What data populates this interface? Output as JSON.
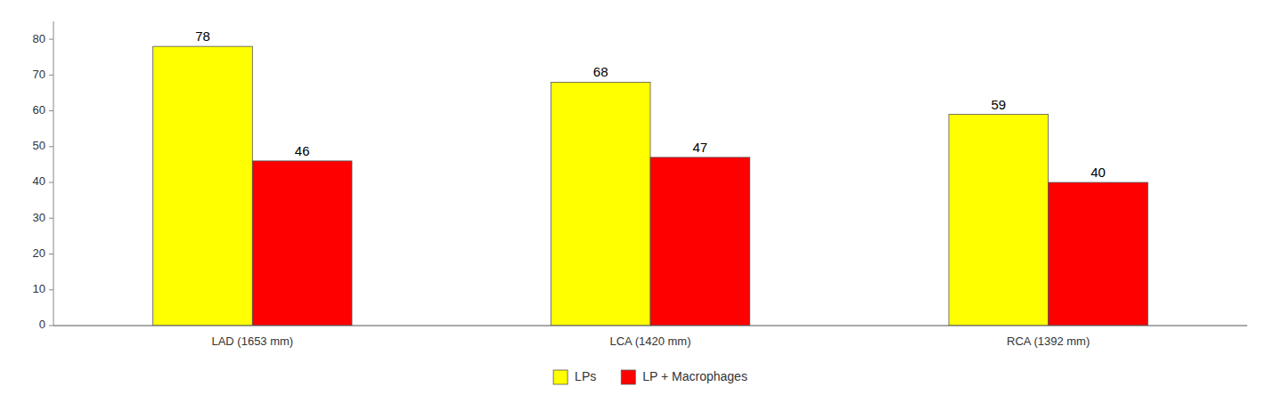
{
  "chart_data": {
    "type": "bar",
    "categories": [
      "LAD (1653 mm)",
      "LCA (1420 mm)",
      "RCA (1392 mm)"
    ],
    "series": [
      {
        "name": "LPs",
        "color": "#FFFF00",
        "values": [
          78,
          68,
          59
        ]
      },
      {
        "name": "LP + Macrophages",
        "color": "#FF0000",
        "values": [
          46,
          47,
          40
        ]
      }
    ],
    "ylim": [
      0,
      85
    ],
    "yticks": [
      0,
      10,
      20,
      30,
      40,
      50,
      60,
      70,
      80
    ],
    "grid": false,
    "legend": "bottom",
    "data_labels": true
  }
}
